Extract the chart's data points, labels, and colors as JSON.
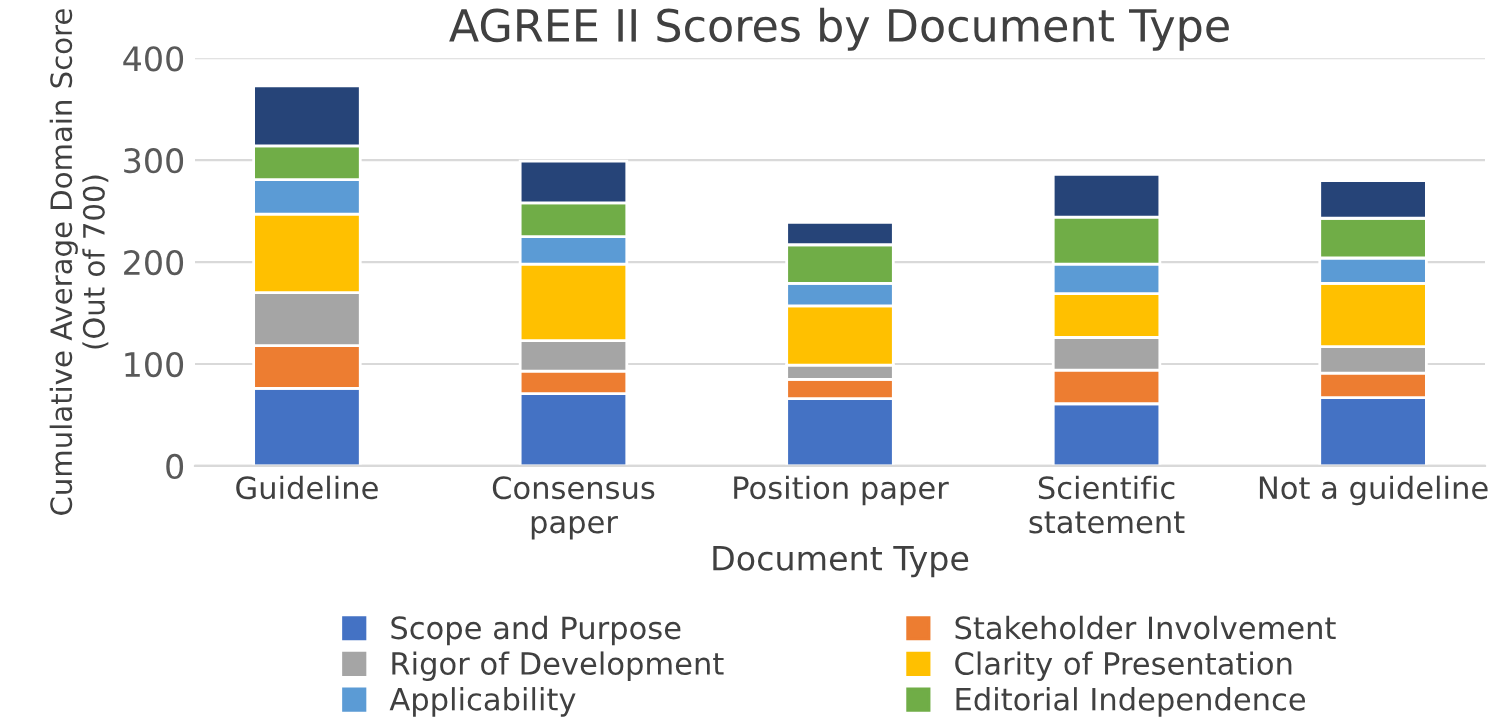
{
  "chart_data": {
    "type": "bar",
    "stacked": true,
    "title": "AGREE II Scores by Document Type",
    "xlabel": "Document Type",
    "ylabel": "Cumulative Average Domain Score\n(Out of 700)",
    "categories": [
      "Guideline",
      "Consensus\npaper",
      "Position paper",
      "Scientific\nstatement",
      "Not a guideline"
    ],
    "series": [
      {
        "name": "Scope and Purpose",
        "color": "#4472c4",
        "values": [
          76,
          71,
          66,
          61,
          67
        ]
      },
      {
        "name": "Stakeholder Involvement",
        "color": "#ed7d31",
        "values": [
          42,
          22,
          19,
          33,
          24
        ]
      },
      {
        "name": "Rigor of Development",
        "color": "#a5a5a5",
        "values": [
          52,
          30,
          14,
          32,
          26
        ]
      },
      {
        "name": "Clarity of Presentation",
        "color": "#ffc000",
        "values": [
          77,
          75,
          58,
          43,
          62
        ]
      },
      {
        "name": "Applicability",
        "color": "#5b9bd5",
        "values": [
          34,
          27,
          22,
          29,
          25
        ]
      },
      {
        "name": "Editorial Independence",
        "color": "#70ad47",
        "values": [
          33,
          33,
          38,
          46,
          39
        ]
      },
      {
        "color": "#264478",
        "values": [
          59,
          41,
          22,
          42,
          37
        ]
      }
    ],
    "ylim": [
      0,
      400
    ],
    "yticks": [
      0,
      100,
      200,
      300,
      400
    ],
    "grid": "y",
    "legend": "bottom"
  }
}
